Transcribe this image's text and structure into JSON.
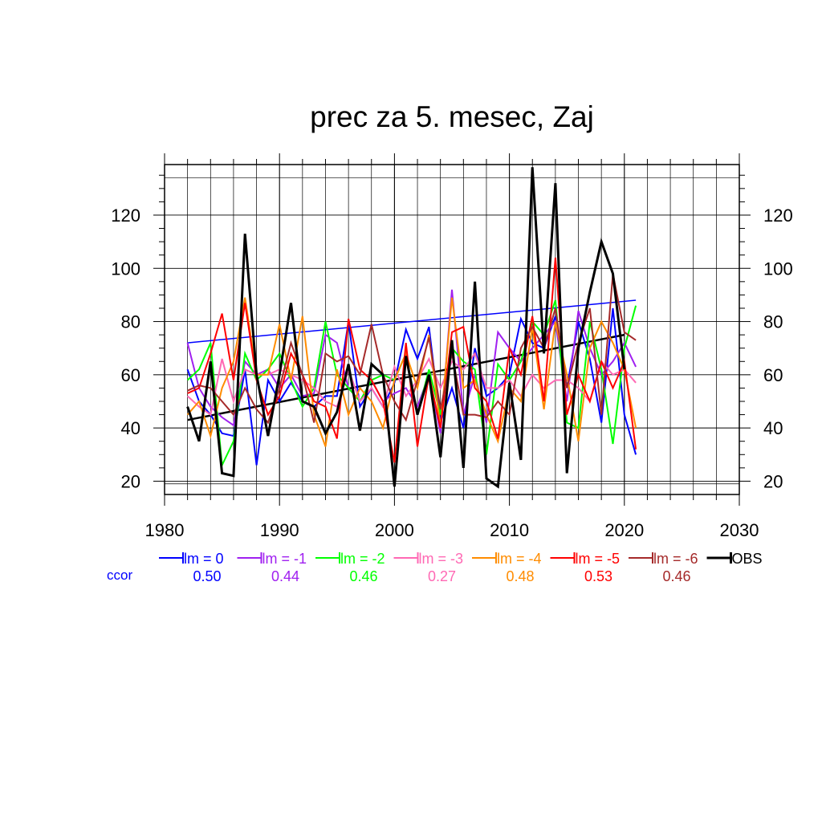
{
  "chart_data": {
    "type": "line",
    "title": "prec za 5. mesec, Zaj",
    "xlabel": "",
    "ylabel": "",
    "xlim": [
      1980,
      2030
    ],
    "ylim": [
      15,
      139
    ],
    "xticks": [
      "1980",
      "1990",
      "2000",
      "2010",
      "2020",
      "2030"
    ],
    "yticks": [
      "20",
      "40",
      "60",
      "80",
      "100",
      "120"
    ],
    "grid": true,
    "legend_position": "bottom",
    "ccor_label": "ccor",
    "series": [
      {
        "name": "lm = 0",
        "ccor": "0.50",
        "color": "#0000ff",
        "x": [
          1982,
          1983,
          1984,
          1985,
          1986,
          1987,
          1988,
          1989,
          1990,
          1991,
          1992,
          1993,
          1994,
          1995,
          1996,
          1997,
          1998,
          1999,
          2000,
          2001,
          2002,
          2003,
          2004,
          2005,
          2006,
          2007,
          2008,
          2009,
          2010,
          2011,
          2012,
          2013,
          2014,
          2015,
          2016,
          2017,
          2018,
          2019,
          2020,
          2021
        ],
        "values": [
          62,
          50,
          45,
          38,
          37,
          62,
          26,
          58,
          50,
          57,
          50,
          48,
          52,
          52,
          80,
          48,
          55,
          48,
          57,
          77,
          66,
          78,
          42,
          55,
          40,
          70,
          52,
          55,
          60,
          81,
          72,
          70,
          82,
          55,
          80,
          66,
          42,
          85,
          45,
          30
        ]
      },
      {
        "name": "lm = -1",
        "ccor": "0.44",
        "color": "#a020f0",
        "x": [
          1982,
          1983,
          1984,
          1985,
          1986,
          1987,
          1988,
          1989,
          1990,
          1991,
          1992,
          1993,
          1994,
          1995,
          1996,
          1997,
          1998,
          1999,
          2000,
          2001,
          2002,
          2003,
          2004,
          2005,
          2006,
          2007,
          2008,
          2009,
          2010,
          2011,
          2012,
          2013,
          2014,
          2015,
          2016,
          2017,
          2018,
          2019,
          2020,
          2021
        ],
        "values": [
          72,
          55,
          48,
          44,
          41,
          65,
          60,
          62,
          55,
          60,
          52,
          53,
          75,
          72,
          55,
          50,
          58,
          50,
          53,
          55,
          48,
          60,
          38,
          92,
          45,
          60,
          42,
          76,
          70,
          65,
          70,
          75,
          80,
          50,
          84,
          70,
          60,
          65,
          72,
          63
        ]
      },
      {
        "name": "lm = -2",
        "ccor": "0.46",
        "color": "#00ff00",
        "x": [
          1982,
          1983,
          1984,
          1985,
          1986,
          1987,
          1988,
          1989,
          1990,
          1991,
          1992,
          1993,
          1994,
          1995,
          1996,
          1997,
          1998,
          1999,
          2000,
          2001,
          2002,
          2003,
          2004,
          2005,
          2006,
          2007,
          2008,
          2009,
          2010,
          2011,
          2012,
          2013,
          2014,
          2015,
          2016,
          2017,
          2018,
          2019,
          2020,
          2021
        ],
        "values": [
          58,
          62,
          72,
          26,
          35,
          68,
          58,
          62,
          68,
          58,
          48,
          55,
          80,
          60,
          55,
          50,
          58,
          60,
          58,
          68,
          45,
          62,
          45,
          70,
          65,
          62,
          30,
          64,
          58,
          65,
          80,
          75,
          88,
          42,
          40,
          80,
          62,
          34,
          70,
          86
        ]
      },
      {
        "name": "lm = -3",
        "ccor": "0.27",
        "color": "#ff69b4",
        "x": [
          1982,
          1983,
          1984,
          1985,
          1986,
          1987,
          1988,
          1989,
          1990,
          1991,
          1992,
          1993,
          1994,
          1995,
          1996,
          1997,
          1998,
          1999,
          2000,
          2001,
          2002,
          2003,
          2004,
          2005,
          2006,
          2007,
          2008,
          2009,
          2010,
          2011,
          2012,
          2013,
          2014,
          2015,
          2016,
          2017,
          2018,
          2019,
          2020,
          2021
        ],
        "values": [
          52,
          48,
          45,
          66,
          50,
          62,
          60,
          60,
          62,
          60,
          58,
          55,
          50,
          48,
          62,
          50,
          55,
          48,
          63,
          52,
          58,
          66,
          55,
          65,
          62,
          68,
          55,
          55,
          58,
          52,
          60,
          55,
          58,
          58,
          55,
          50,
          65,
          60,
          62,
          57
        ]
      },
      {
        "name": "lm = -4",
        "ccor": "0.48",
        "color": "#ff8c00",
        "x": [
          1982,
          1983,
          1984,
          1985,
          1986,
          1987,
          1988,
          1989,
          1990,
          1991,
          1992,
          1993,
          1994,
          1995,
          1996,
          1997,
          1998,
          1999,
          2000,
          2001,
          2002,
          2003,
          2004,
          2005,
          2006,
          2007,
          2008,
          2009,
          2010,
          2011,
          2012,
          2013,
          2014,
          2015,
          2016,
          2017,
          2018,
          2019,
          2020,
          2021
        ],
        "values": [
          45,
          50,
          37,
          55,
          65,
          89,
          60,
          60,
          79,
          58,
          82,
          45,
          33,
          62,
          45,
          55,
          50,
          40,
          58,
          68,
          55,
          75,
          40,
          89,
          55,
          58,
          45,
          35,
          55,
          50,
          78,
          47,
          80,
          60,
          35,
          70,
          80,
          72,
          62,
          40
        ]
      },
      {
        "name": "lm = -5",
        "ccor": "0.53",
        "color": "#ff0000",
        "x": [
          1982,
          1983,
          1984,
          1985,
          1986,
          1987,
          1988,
          1989,
          1990,
          1991,
          1992,
          1993,
          1994,
          1995,
          1996,
          1997,
          1998,
          1999,
          2000,
          2001,
          2002,
          2003,
          2004,
          2005,
          2006,
          2007,
          2008,
          2009,
          2010,
          2011,
          2012,
          2013,
          2014,
          2015,
          2016,
          2017,
          2018,
          2019,
          2020,
          2021
        ],
        "values": [
          53,
          55,
          68,
          83,
          58,
          87,
          58,
          45,
          52,
          68,
          60,
          50,
          48,
          36,
          81,
          62,
          58,
          50,
          27,
          72,
          33,
          60,
          40,
          76,
          78,
          55,
          50,
          36,
          70,
          60,
          82,
          50,
          104,
          45,
          60,
          50,
          65,
          55,
          65,
          32
        ]
      },
      {
        "name": "lm = -6",
        "ccor": "0.46",
        "color": "#a52a2a",
        "x": [
          1982,
          1983,
          1984,
          1985,
          1986,
          1987,
          1988,
          1989,
          1990,
          1991,
          1992,
          1993,
          1994,
          1995,
          1996,
          1997,
          1998,
          1999,
          2000,
          2001,
          2002,
          2003,
          2004,
          2005,
          2006,
          2007,
          2008,
          2009,
          2010,
          2011,
          2012,
          2013,
          2014,
          2015,
          2016,
          2017,
          2018,
          2019,
          2020,
          2021
        ],
        "values": [
          54,
          56,
          55,
          50,
          45,
          55,
          47,
          42,
          55,
          72,
          60,
          42,
          68,
          65,
          67,
          60,
          79,
          60,
          50,
          43,
          58,
          74,
          47,
          68,
          45,
          45,
          44,
          50,
          45,
          70,
          78,
          70,
          85,
          55,
          72,
          85,
          45,
          98,
          76,
          73
        ]
      },
      {
        "name": "OBS",
        "ccor": "",
        "color": "#000000",
        "x": [
          1982,
          1983,
          1984,
          1985,
          1986,
          1987,
          1988,
          1989,
          1990,
          1991,
          1992,
          1993,
          1994,
          1995,
          1996,
          1997,
          1998,
          1999,
          2000,
          2001,
          2002,
          2003,
          2004,
          2005,
          2006,
          2007,
          2008,
          2009,
          2010,
          2011,
          2012,
          2013,
          2014,
          2015,
          2016,
          2017,
          2018,
          2019,
          2020
        ],
        "values": [
          48,
          35,
          65,
          23,
          22,
          113,
          60,
          37,
          60,
          87,
          50,
          48,
          38,
          46,
          64,
          39,
          64,
          60,
          18,
          67,
          45,
          60,
          29,
          73,
          25,
          95,
          21,
          18,
          57,
          28,
          138,
          68,
          132,
          23,
          70,
          91,
          110,
          98,
          62
        ]
      }
    ],
    "trend_lines": [
      {
        "name": "lm = 0 trend",
        "color": "#0000ff",
        "x": [
          1982,
          2021
        ],
        "values": [
          72,
          88
        ]
      },
      {
        "name": "OBS trend",
        "color": "#000000",
        "x": [
          1982,
          2020
        ],
        "values": [
          43,
          75
        ]
      }
    ]
  }
}
